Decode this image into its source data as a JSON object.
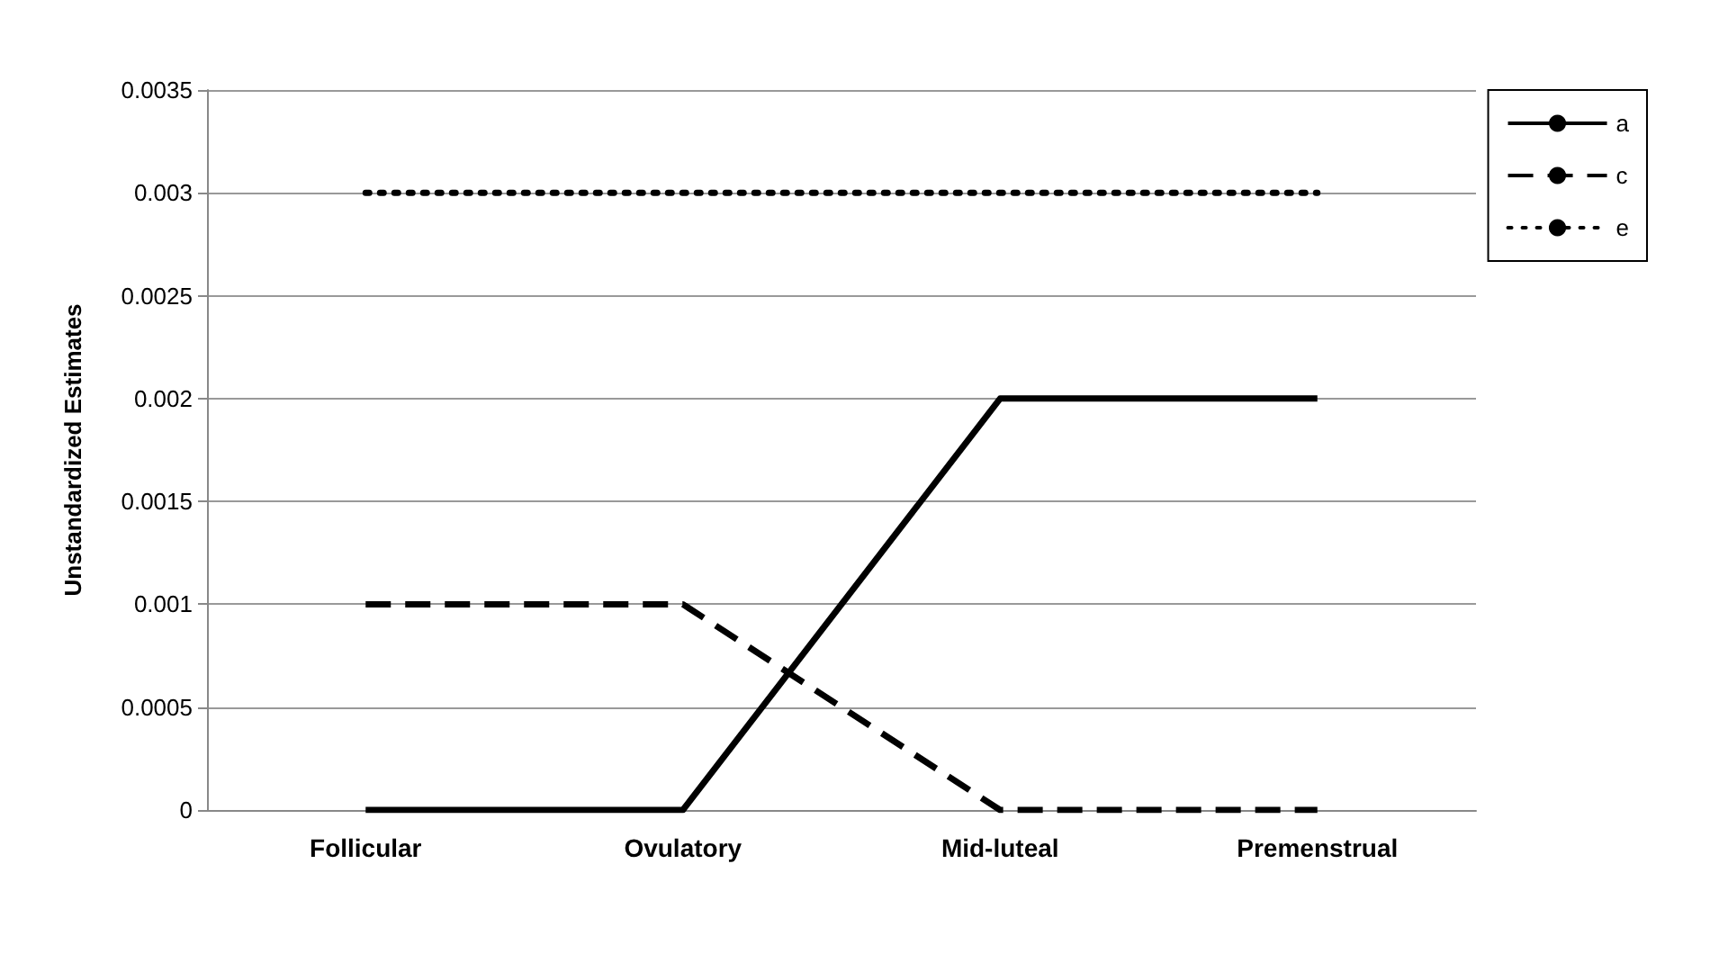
{
  "chart_data": {
    "type": "line",
    "ylabel": "Unstandardized Estimates",
    "categories": [
      "Follicular",
      "Ovulatory",
      "Mid-luteal",
      "Premenstrual"
    ],
    "series": [
      {
        "name": "a",
        "color": "#000000",
        "line_style": "solid",
        "values": [
          0,
          0,
          0.002,
          0.002
        ]
      },
      {
        "name": "c",
        "color": "#000000",
        "line_style": "dashed",
        "values": [
          0.001,
          0.001,
          0,
          0
        ]
      },
      {
        "name": "e",
        "color": "#000000",
        "line_style": "dotted",
        "values": [
          0.003,
          0.003,
          0.003,
          0.003
        ]
      }
    ],
    "ylim": [
      0,
      0.0035
    ],
    "yticks": [
      0,
      0.0005,
      0.001,
      0.0015,
      0.002,
      0.0025,
      0.003,
      0.0035
    ],
    "grid": "y",
    "legend": "top right",
    "marker": "none"
  }
}
